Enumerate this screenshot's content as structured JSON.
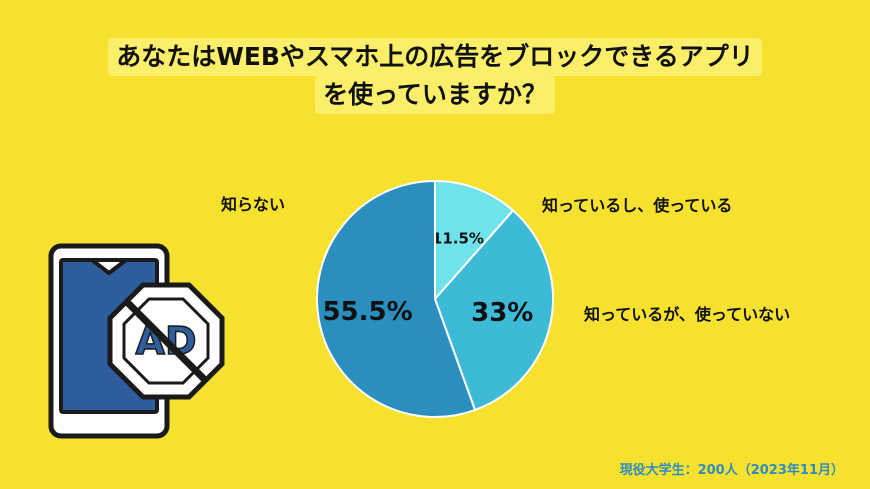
{
  "title_lines": [
    "あなたはWEBやスマホ上の広告をブロックできるアプリ",
    "を使っていますか？"
  ],
  "chart_data": {
    "type": "pie",
    "slices": [
      {
        "label": "知っているし、使っている",
        "value": 11.5,
        "value_label": "11.5%",
        "color": "#6EE3EC"
      },
      {
        "label": "知っているが、使っていない",
        "value": 33,
        "value_label": "33%",
        "color": "#3DBAD6"
      },
      {
        "label": "知らない",
        "value": 55.5,
        "value_label": "55.5%",
        "color": "#2A8FBF"
      }
    ]
  },
  "source": "現役大学生：200人（2023年11月）",
  "icon": {
    "name": "ad-block-phone-icon",
    "text": "AD"
  },
  "colors": {
    "background": "#F6E12E",
    "title_bg": "#FBEF6A"
  }
}
